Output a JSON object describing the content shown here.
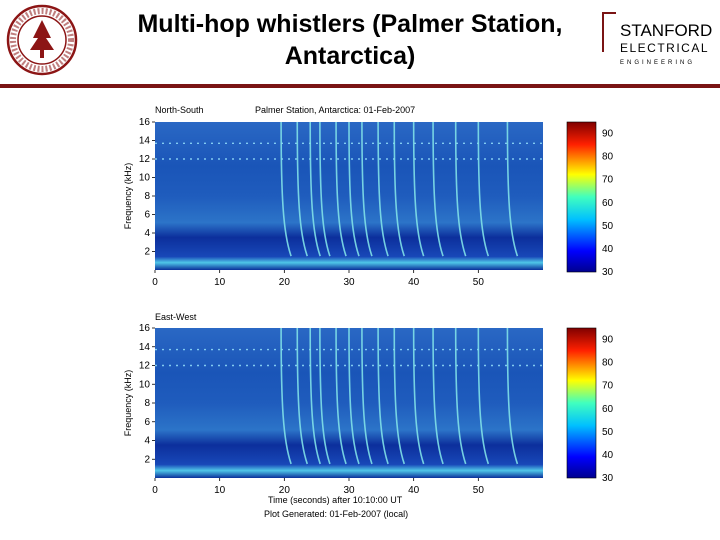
{
  "slide": {
    "title": "Multi-hop whistlers (Palmer Station, Antarctica)"
  },
  "logo": {
    "stanford_line1": "STANFORD",
    "stanford_line2": "ELECTRICAL",
    "stanford_line3": "ENGINEERING"
  },
  "colors": {
    "divider": "#7a1414",
    "spectrogram_bg": "#1e5fb8",
    "whistler": "#7fe0e8",
    "band": "#9be8ff"
  },
  "chart_data": [
    {
      "type": "heatmap",
      "title": "Palmer Station, Antarctica: 01-Feb-2007",
      "channel": "North-South",
      "ylabel": "Frequency (kHz)",
      "y_ticks": [
        2,
        4,
        6,
        8,
        10,
        12,
        14,
        16
      ],
      "ylim": [
        0,
        16
      ],
      "x_ticks": [
        0,
        10,
        20,
        30,
        40,
        50
      ],
      "xlim": [
        0,
        60
      ],
      "colorbar": {
        "ticks": [
          30,
          40,
          50,
          60,
          70,
          80,
          90
        ],
        "range": [
          30,
          95
        ]
      },
      "whistler_times_s": [
        19.5,
        22,
        24,
        25.5,
        28,
        30,
        32,
        34.5,
        37,
        40,
        43,
        46.5,
        50,
        54.5
      ]
    },
    {
      "type": "heatmap",
      "channel": "East-West",
      "ylabel": "Frequency (kHz)",
      "y_ticks": [
        2,
        4,
        6,
        8,
        10,
        12,
        14,
        16
      ],
      "ylim": [
        0,
        16
      ],
      "x_ticks": [
        0,
        10,
        20,
        30,
        40,
        50
      ],
      "xlim": [
        0,
        60
      ],
      "xlabel": "Time (seconds) after 10:10:00 UT",
      "footer": "Plot Generated: 01-Feb-2007 (local)",
      "colorbar": {
        "ticks": [
          30,
          40,
          50,
          60,
          70,
          80,
          90
        ],
        "range": [
          30,
          95
        ]
      },
      "whistler_times_s": [
        19.5,
        22,
        24,
        25.5,
        28,
        30,
        32,
        34.5,
        37,
        40,
        43,
        46.5,
        50,
        54.5
      ]
    }
  ]
}
